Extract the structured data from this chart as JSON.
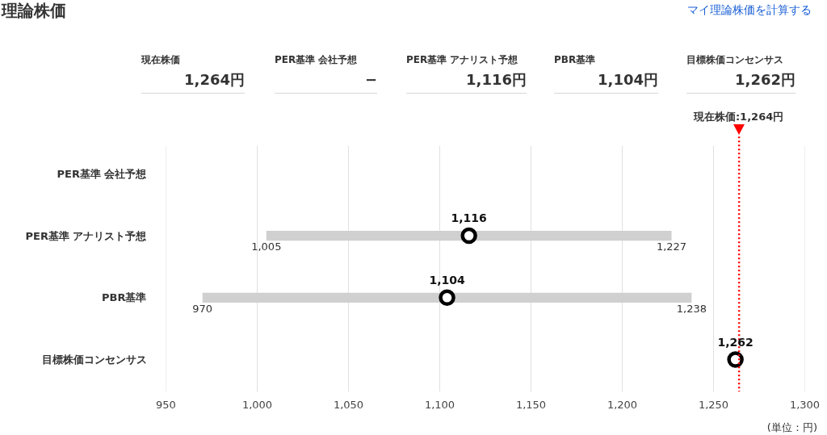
{
  "chart_data": {
    "type": "bar",
    "orientation": "horizontal",
    "title": "理論株価",
    "categories": [
      "PER基準 会社予想",
      "PER基準 アナリスト予想",
      "PBR基準",
      "目標株価コンセンサス"
    ],
    "series": [
      {
        "color": "#d0d0d0",
        "base": [
          null,
          1005,
          970,
          null
        ],
        "values": [
          null,
          222,
          268,
          null
        ]
      },
      {
        "type": "scatter",
        "color": "#000000",
        "marker": "circle",
        "values": [
          null,
          1116,
          1104,
          1262
        ],
        "value_labels": [
          null,
          "1,116",
          "1,104",
          "1,262"
        ]
      }
    ],
    "xlim": [
      950,
      1300
    ],
    "xticks": [
      {
        "value": 950,
        "label": "950"
      },
      {
        "value": 1000,
        "label": "1,000"
      },
      {
        "value": 1050,
        "label": "1,050"
      },
      {
        "value": 1100,
        "label": "1,100"
      },
      {
        "value": 1150,
        "label": "1,150"
      },
      {
        "value": 1200,
        "label": "1,200"
      },
      {
        "value": 1250,
        "label": "1,250"
      },
      {
        "value": 1300,
        "label": "1,300"
      }
    ],
    "grid": "x",
    "ref_lines": [
      {
        "axis": "x",
        "value": 1264,
        "label": "現在株価:1,264円",
        "color": "#ff0000",
        "line_style": "dotted"
      }
    ],
    "annotations": [
      "マイ理論株価を計算する",
      "現在株価",
      "1,264円",
      "PER基準 会社予想",
      "−",
      "PER基準 アナリスト予想",
      "1,116円",
      "PBR基準",
      "1,104円",
      "目標株価コンセンサス",
      "1,262円",
      {
        "text": "1,005",
        "x": 1005,
        "y": "PER基準 アナリスト予想"
      },
      {
        "text": "1,227",
        "x": 1227,
        "y": "PER基準 アナリスト予想"
      },
      {
        "text": "970",
        "x": 970,
        "y": "PBR基準"
      },
      {
        "text": "1,238",
        "x": 1238,
        "y": "PBR基準"
      },
      "(単位：円)"
    ]
  }
}
